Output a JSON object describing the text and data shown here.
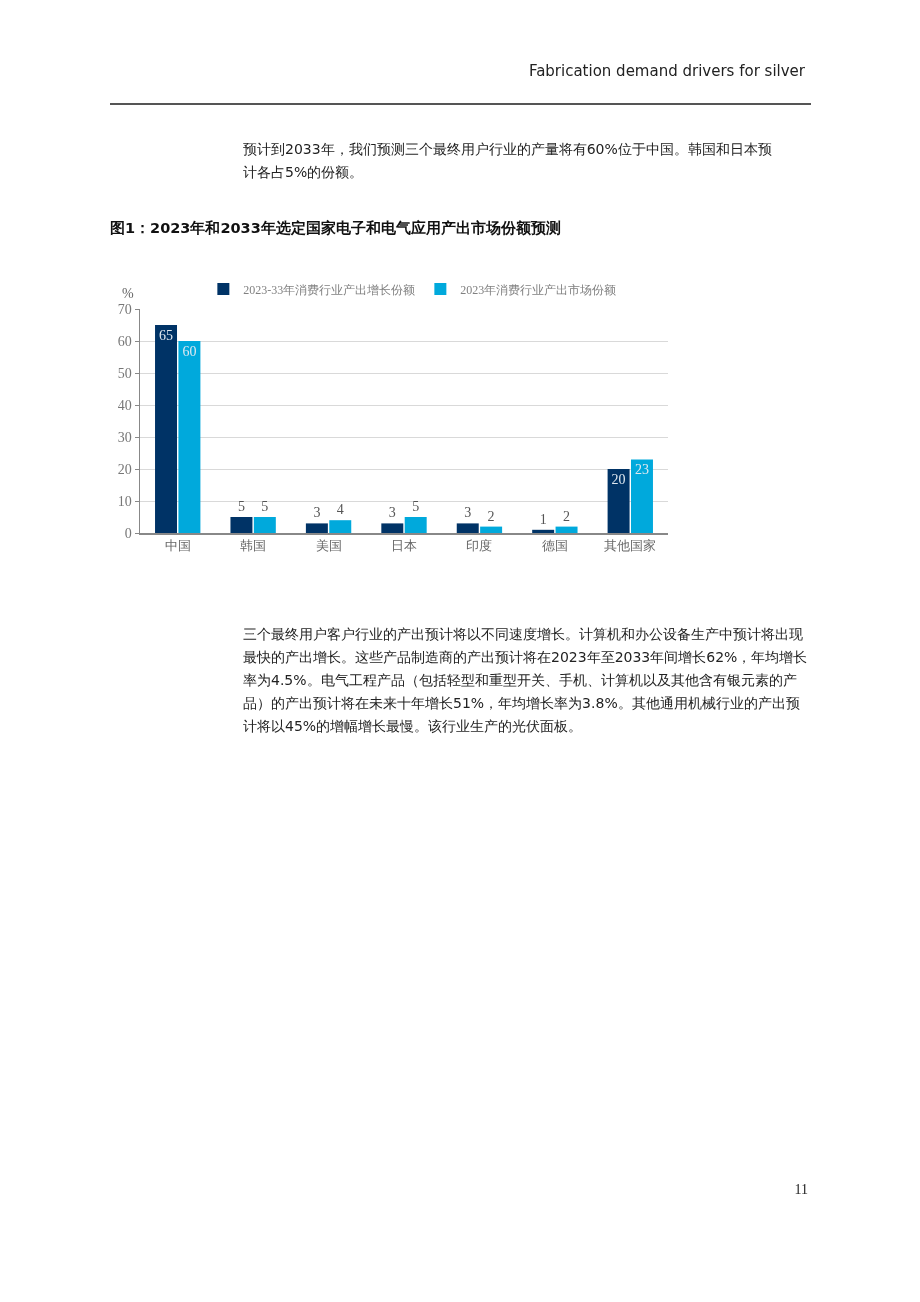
{
  "chart_data": {
    "type": "bar",
    "title": "图1：2023年和2033年选定国家电子和电气应用产出市场份额预测",
    "ylabel": "%",
    "annotations": [
      "Fabrication demand drivers for silver",
      "预计到2033年，我们预测三个最终用户行业的产量将有60%位于中国。韩国和日本预计各占5%的份额。",
      "三个最终用户客户行业的产出预计将以不同速度增长。计算机和办公设备生产中预计将出现最快的产出增长。这些产品制造商的产出预计将在2023年至2033年间增长62%，年均增长率为4.5%。电气工程产品（包括轻型和重型开关、手机、计算机以及其他含有银元素的产品）的产出预计将在未来十年增长51%，年均增长率为3.8%。其他通用机械行业的产出预计将以45%的增幅增长最慢。该行业生产的光伏面板。",
      "11"
    ],
    "categories": [
      "中国",
      "韩国",
      "美国",
      "日本",
      "印度",
      "德国",
      "其他国家"
    ],
    "series": [
      {
        "name": "2023-33年消费行业产出增长份额",
        "color": "#003366",
        "values": [
          65,
          5,
          3,
          3,
          3,
          1,
          20
        ]
      },
      {
        "name": "2023年消费行业产出市场份额",
        "color": "#00a9dc",
        "values": [
          60,
          5,
          4,
          5,
          2,
          2,
          23
        ]
      }
    ],
    "ylim": [
      0,
      70
    ],
    "yticks": [
      0,
      10,
      20,
      30,
      40,
      50,
      60,
      70
    ],
    "grid": "y",
    "legend": "top",
    "data_labels": true
  }
}
